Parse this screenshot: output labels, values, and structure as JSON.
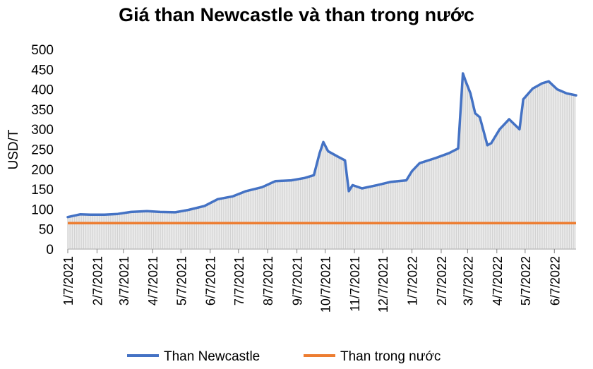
{
  "chart_data": {
    "type": "line",
    "title": "Giá than Newcastle và than trong nước",
    "xlabel": "",
    "ylabel": "USD/T",
    "ylim": [
      0,
      500
    ],
    "y_ticks": [
      "0",
      "50",
      "100",
      "150",
      "200",
      "250",
      "300",
      "350",
      "400",
      "450",
      "500"
    ],
    "x_tick_labels": [
      "1/7/2021",
      "2/7/2021",
      "3/7/2021",
      "4/7/2021",
      "5/7/2021",
      "6/7/2021",
      "7/7/2021",
      "8/7/2021",
      "9/7/2021",
      "10/7/2021",
      "11/7/2021",
      "12/7/2021",
      "1/7/2022",
      "2/7/2022",
      "3/7/2022",
      "4/7/2022",
      "5/7/2022",
      "6/7/2022"
    ],
    "x_range": [
      "2021-01-07",
      "2022-06-30"
    ],
    "grid": false,
    "legend_position": "bottom",
    "series": [
      {
        "name": "Than Newcastle",
        "color": "#4472C4",
        "style": "line with grey area fill",
        "x": [
          "2021-01-07",
          "2021-01-20",
          "2021-02-01",
          "2021-02-15",
          "2021-03-01",
          "2021-03-15",
          "2021-04-01",
          "2021-04-15",
          "2021-05-01",
          "2021-05-15",
          "2021-06-01",
          "2021-06-15",
          "2021-07-01",
          "2021-07-15",
          "2021-08-01",
          "2021-08-15",
          "2021-09-01",
          "2021-09-15",
          "2021-09-25",
          "2021-10-01",
          "2021-10-05",
          "2021-10-10",
          "2021-10-20",
          "2021-10-28",
          "2021-11-01",
          "2021-11-05",
          "2021-11-15",
          "2021-12-01",
          "2021-12-15",
          "2022-01-01",
          "2022-01-07",
          "2022-01-15",
          "2022-02-01",
          "2022-02-15",
          "2022-02-25",
          "2022-03-02",
          "2022-03-05",
          "2022-03-10",
          "2022-03-15",
          "2022-03-20",
          "2022-03-28",
          "2022-04-01",
          "2022-04-10",
          "2022-04-20",
          "2022-05-01",
          "2022-05-05",
          "2022-05-15",
          "2022-05-25",
          "2022-06-01",
          "2022-06-10",
          "2022-06-20",
          "2022-06-30"
        ],
        "values": [
          80,
          87,
          86,
          86,
          88,
          93,
          95,
          93,
          92,
          98,
          108,
          125,
          132,
          145,
          155,
          170,
          172,
          178,
          185,
          240,
          268,
          245,
          232,
          222,
          145,
          160,
          152,
          160,
          168,
          172,
          195,
          215,
          228,
          240,
          252,
          440,
          420,
          390,
          340,
          330,
          260,
          265,
          300,
          325,
          300,
          375,
          402,
          415,
          420,
          400,
          390,
          385
        ]
      },
      {
        "name": "Than trong nước",
        "color": "#ED7D31",
        "style": "line",
        "x": [
          "2021-01-07",
          "2022-06-30"
        ],
        "values": [
          65,
          65
        ]
      }
    ]
  }
}
